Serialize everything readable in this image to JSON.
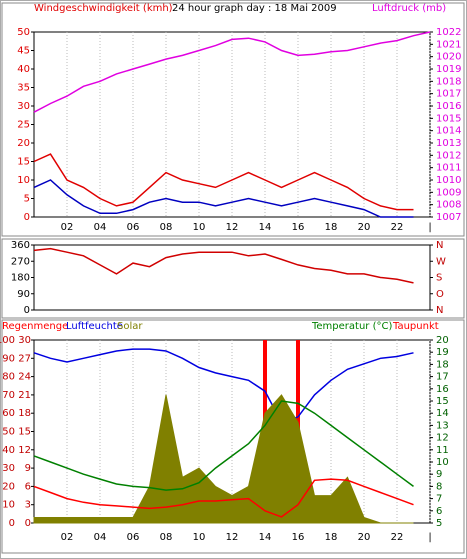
{
  "chart_data": [
    {
      "type": "line",
      "title": "24 hour graph day : 18 Mai 2009",
      "ylabel": "Windgeschwindigkeit (kmh)",
      "y2label": "Luftdruck (mb)",
      "ycolor": "#e00000",
      "y2color": "#e000e0",
      "grid": true,
      "x": [
        0,
        1,
        2,
        3,
        4,
        5,
        6,
        7,
        8,
        9,
        10,
        11,
        12,
        13,
        14,
        15,
        16,
        17,
        18,
        19,
        20,
        21,
        22,
        23,
        24
      ],
      "xlim": [
        0,
        24
      ],
      "xticks": [
        {
          "value": 2,
          "label": "02"
        },
        {
          "value": 4,
          "label": "04"
        },
        {
          "value": 6,
          "label": "06"
        },
        {
          "value": 8,
          "label": "08"
        },
        10,
        12,
        14,
        16,
        18,
        20,
        22,
        {
          "value": 24,
          "label": "|"
        }
      ],
      "ylim": [
        0,
        50
      ],
      "yticks": [
        0,
        5,
        10,
        15,
        20,
        25,
        30,
        35,
        40,
        45,
        50
      ],
      "y2lim": [
        1007,
        1022
      ],
      "y2ticks": [
        1007,
        1008,
        1009,
        1010,
        1011,
        1012,
        1013,
        1014,
        1015,
        1016,
        1017,
        1018,
        1019,
        1020,
        1021,
        1022
      ],
      "series": [
        {
          "name": "Luftdruck",
          "color": "#e000e0",
          "axis": "y2",
          "values": [
            1015.5,
            1016.2,
            1016.8,
            1017.6,
            1018.0,
            1018.6,
            1019.0,
            1019.4,
            1019.8,
            1020.1,
            1020.5,
            1020.9,
            1021.4,
            1021.5,
            1021.2,
            1020.5,
            1020.1,
            1020.2,
            1020.4,
            1020.5,
            1020.8,
            1021.1,
            1021.3,
            1021.7,
            1022.0
          ]
        },
        {
          "name": "Böen",
          "color": "#e00000",
          "values": [
            15,
            17,
            10,
            8,
            5,
            3,
            4,
            8,
            12,
            10,
            9,
            8,
            10,
            12,
            10,
            8,
            10,
            12,
            10,
            8,
            5,
            3,
            2,
            2,
            null
          ]
        },
        {
          "name": "Mittel",
          "color": "#0000c0",
          "values": [
            8,
            10,
            6,
            3,
            1,
            1,
            2,
            4,
            5,
            4,
            4,
            3,
            4,
            5,
            4,
            3,
            4,
            5,
            4,
            3,
            2,
            0,
            0,
            0,
            null
          ]
        }
      ]
    },
    {
      "type": "line",
      "grid": true,
      "x": [
        0,
        1,
        2,
        3,
        4,
        5,
        6,
        7,
        8,
        9,
        10,
        11,
        12,
        13,
        14,
        15,
        16,
        17,
        18,
        19,
        20,
        21,
        22,
        23,
        24
      ],
      "xlim": [
        0,
        24
      ],
      "ylim": [
        0,
        360
      ],
      "yticks": [
        0,
        90,
        180,
        270,
        360
      ],
      "y2lim": [
        0,
        360
      ],
      "y2ticks": [
        {
          "value": 360,
          "label": "N"
        },
        {
          "value": 270,
          "label": "W"
        },
        {
          "value": 180,
          "label": "S"
        },
        {
          "value": 90,
          "label": "O"
        },
        {
          "value": 0,
          "label": "N"
        }
      ],
      "ycolor": "#000000",
      "y2color": "#c00000",
      "series": [
        {
          "name": "Windrichtung",
          "color": "#d00000",
          "values": [
            330,
            340,
            320,
            300,
            250,
            200,
            260,
            240,
            290,
            310,
            320,
            320,
            320,
            300,
            310,
            280,
            250,
            230,
            220,
            200,
            200,
            180,
            170,
            150,
            null
          ]
        }
      ]
    },
    {
      "type": "line",
      "grid": true,
      "x": [
        0,
        1,
        2,
        3,
        4,
        5,
        6,
        7,
        8,
        9,
        10,
        11,
        12,
        13,
        14,
        15,
        16,
        17,
        18,
        19,
        20,
        21,
        22,
        23,
        24
      ],
      "xlim": [
        0,
        24
      ],
      "xticks": [
        {
          "value": 2,
          "label": "02"
        },
        {
          "value": 4,
          "label": "04"
        },
        {
          "value": 6,
          "label": "06"
        },
        {
          "value": 8,
          "label": "08"
        },
        10,
        12,
        14,
        16,
        18,
        20,
        22,
        {
          "value": 24,
          "label": "|"
        }
      ],
      "ylim": [
        0,
        100
      ],
      "yticks": [
        0,
        10,
        20,
        30,
        40,
        50,
        60,
        70,
        80,
        90,
        100
      ],
      "y3lim": [
        0,
        30
      ],
      "y3ticks": [
        0,
        3,
        6,
        9,
        12,
        15,
        18,
        21,
        24,
        27,
        30
      ],
      "y2lim": [
        5,
        20
      ],
      "y2ticks": [
        5,
        6,
        7,
        8,
        9,
        10,
        11,
        12,
        13,
        14,
        15,
        16,
        17,
        18,
        19,
        20
      ],
      "ycolor": "#c00000",
      "y2color": "#006000",
      "series": [
        {
          "name": "Regenmenge",
          "color": "#ff0000",
          "axis": "y3",
          "style": "bar",
          "values": [
            0,
            0,
            0,
            0,
            0,
            0,
            0,
            0,
            0,
            0,
            0,
            0,
            0,
            0,
            30,
            0,
            30,
            0,
            0,
            0,
            0,
            0,
            0,
            0,
            null
          ]
        },
        {
          "name": "Luftfeuchte",
          "color": "#0000e0",
          "values": [
            93,
            90,
            88,
            90,
            92,
            94,
            95,
            95,
            94,
            90,
            85,
            82,
            80,
            78,
            72,
            55,
            58,
            70,
            78,
            84,
            87,
            90,
            91,
            93,
            null
          ]
        },
        {
          "name": "Solar",
          "color": "#808000",
          "style": "area",
          "values": [
            3,
            3,
            3,
            3,
            3,
            3,
            3,
            20,
            70,
            25,
            30,
            20,
            15,
            20,
            60,
            70,
            55,
            15,
            15,
            25,
            3,
            0,
            0,
            0,
            null
          ]
        },
        {
          "name": "Temperatur (°C)",
          "color": "#008000",
          "axis": "y2",
          "values": [
            10.5,
            10.0,
            9.5,
            9.0,
            8.6,
            8.2,
            8.0,
            7.9,
            7.7,
            7.8,
            8.3,
            9.5,
            10.5,
            11.5,
            13.0,
            15.0,
            14.8,
            14.0,
            13.0,
            12.0,
            11.0,
            10.0,
            9.0,
            8.0,
            null
          ]
        },
        {
          "name": "Taupunkt",
          "color": "#ff0000",
          "axis": "y2",
          "values": [
            8.0,
            7.5,
            7.0,
            6.7,
            6.5,
            6.4,
            6.3,
            6.2,
            6.3,
            6.5,
            6.8,
            6.8,
            6.9,
            7.0,
            6.0,
            5.5,
            6.5,
            8.5,
            8.6,
            8.5,
            8.0,
            7.5,
            7.0,
            6.5,
            null
          ]
        }
      ]
    }
  ]
}
